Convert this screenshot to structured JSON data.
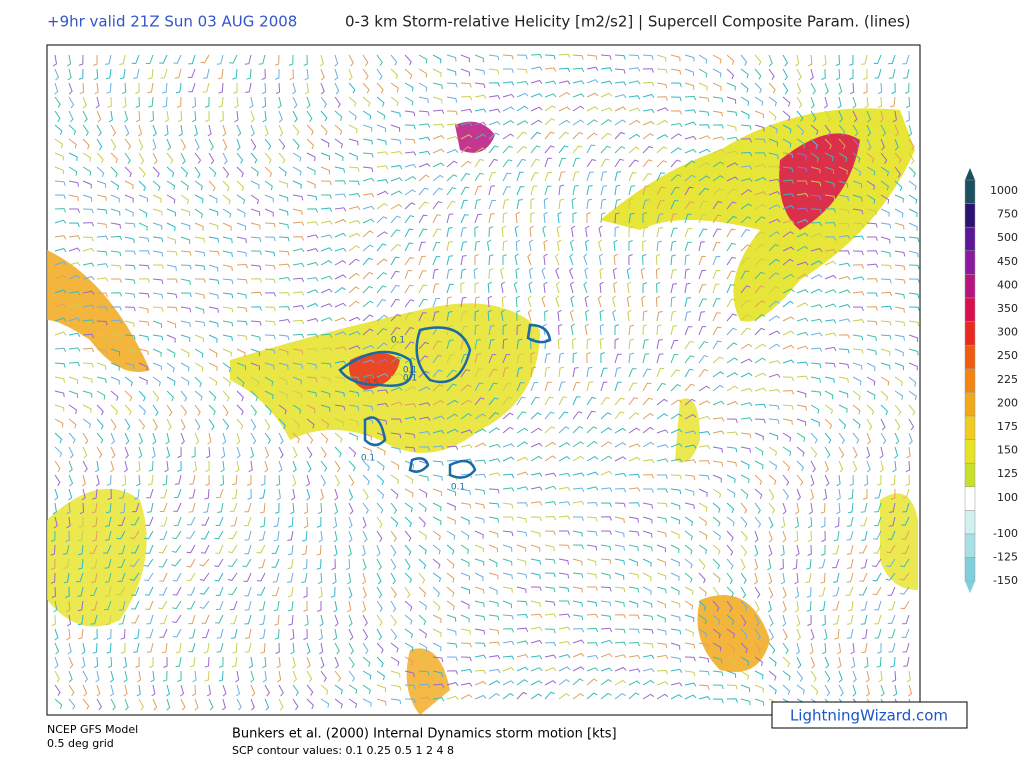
{
  "header": {
    "valid": "+9hr valid 21Z Sun 03 AUG 2008",
    "title": "0-3 km Storm-relative Helicity [m2/s2] | Supercell Composite Param. (lines)"
  },
  "legend": {
    "items": [
      {
        "label": 1000,
        "color": "#1d4f5e"
      },
      {
        "label": 750,
        "color": "#2b1470"
      },
      {
        "label": 500,
        "color": "#5a1898"
      },
      {
        "label": 450,
        "color": "#8c1aa0"
      },
      {
        "label": 400,
        "color": "#b8147e"
      },
      {
        "label": 350,
        "color": "#d8104e"
      },
      {
        "label": 300,
        "color": "#ea2a1e"
      },
      {
        "label": 250,
        "color": "#f05a10"
      },
      {
        "label": 225,
        "color": "#f38412"
      },
      {
        "label": 200,
        "color": "#f2a81a"
      },
      {
        "label": 175,
        "color": "#f0cc20"
      },
      {
        "label": 150,
        "color": "#e6e224"
      },
      {
        "label": 125,
        "color": "#c8e02a"
      },
      {
        "label": 100,
        "color": "#ffffff"
      },
      {
        "label": -100,
        "color": "#d2f0f0"
      },
      {
        "label": -125,
        "color": "#a8e0e6"
      },
      {
        "label": -150,
        "color": "#80d0dc"
      }
    ]
  },
  "contour_labels": [
    "0.1",
    "0.1",
    "0.5",
    "0.1",
    "0.1",
    "0.1"
  ],
  "footer": {
    "model": "NCEP GFS Model",
    "grid": "0.5 deg grid",
    "motion": "Bunkers et al. (2000) Internal Dynamics storm motion [kts]",
    "scp": "SCP contour values: 0.1 0.25 0.5 1 2 4 8"
  },
  "watermark": "LightningWizard.com"
}
